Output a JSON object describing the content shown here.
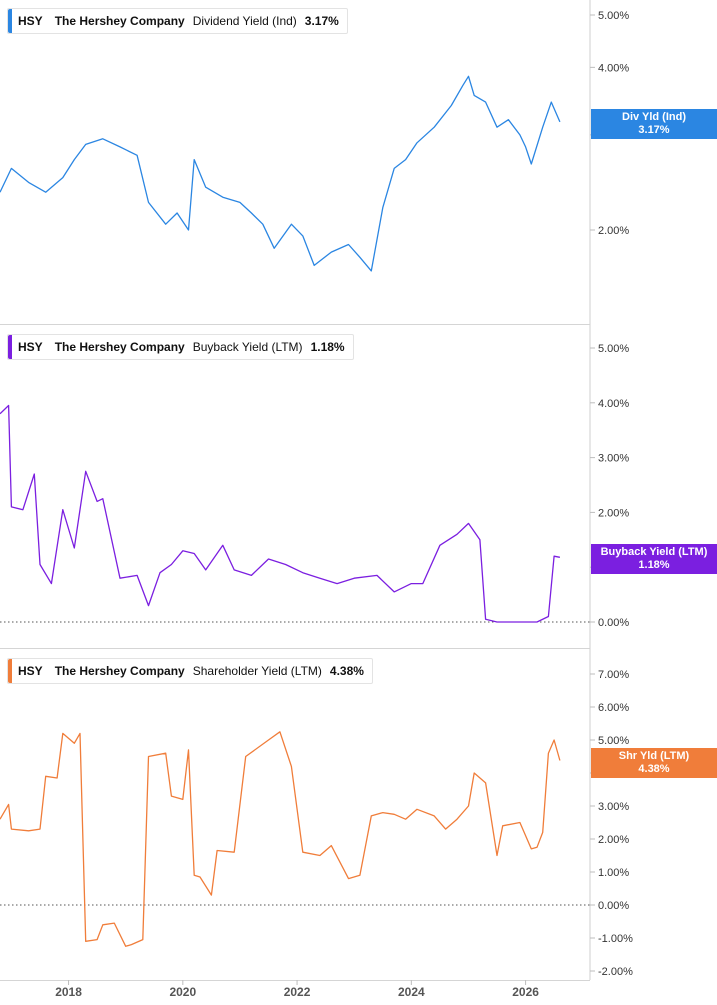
{
  "x_axis": {
    "tick_labels": [
      "2018",
      "2020",
      "2022",
      "2024",
      "2026"
    ],
    "tick_years": [
      2018,
      2020,
      2022,
      2024,
      2026
    ]
  },
  "chart_data": [
    {
      "type": "line",
      "ticker": "HSY",
      "company": "The Hershey Company",
      "metric": "Dividend Yield (Ind)",
      "current_value": "3.17%",
      "badge": {
        "line1": "Div Yld (Ind)",
        "line2": "3.17%"
      },
      "color": "#2b86e2",
      "scale": "log",
      "ylim": [
        1.6,
        5.5
      ],
      "y_ticks": [
        2,
        3,
        4,
        5
      ],
      "y_tick_labels": [
        "2.00%",
        "3.00%",
        "4.00%",
        "5.00%"
      ],
      "series": [
        {
          "x": [
            2016.8,
            2017.0,
            2017.3,
            2017.6,
            2017.9,
            2018.1,
            2018.3,
            2018.6,
            2018.9,
            2019.2,
            2019.4,
            2019.7,
            2019.9,
            2020.1,
            2020.2,
            2020.4,
            2020.7,
            2021.0,
            2021.2,
            2021.4,
            2021.6,
            2021.9,
            2022.1,
            2022.3,
            2022.6,
            2022.9,
            2023.1,
            2023.3,
            2023.5,
            2023.7,
            2023.9,
            2024.1,
            2024.4,
            2024.7,
            2024.9,
            2025.0,
            2025.1,
            2025.3,
            2025.5,
            2025.7,
            2025.9,
            2026.0,
            2026.1,
            2026.3,
            2026.45,
            2026.6
          ],
          "values": [
            2.35,
            2.6,
            2.45,
            2.35,
            2.5,
            2.7,
            2.88,
            2.95,
            2.85,
            2.75,
            2.25,
            2.05,
            2.15,
            2.0,
            2.7,
            2.4,
            2.3,
            2.25,
            2.15,
            2.05,
            1.85,
            2.05,
            1.95,
            1.72,
            1.82,
            1.88,
            1.78,
            1.68,
            2.2,
            2.6,
            2.7,
            2.9,
            3.1,
            3.4,
            3.7,
            3.85,
            3.55,
            3.45,
            3.1,
            3.2,
            3.0,
            2.85,
            2.65,
            3.1,
            3.45,
            3.17
          ]
        }
      ]
    },
    {
      "type": "line",
      "ticker": "HSY",
      "company": "The Hershey Company",
      "metric": "Buyback Yield (LTM)",
      "current_value": "1.18%",
      "badge": {
        "line1": "Buyback Yield (LTM)",
        "line2": "1.18%"
      },
      "color": "#7b1fe0",
      "scale": "linear",
      "ylim": [
        -0.5,
        5.3
      ],
      "y_ticks": [
        0,
        1,
        2,
        3,
        4,
        5
      ],
      "y_tick_labels": [
        "0.00%",
        "1.00%",
        "2.00%",
        "3.00%",
        "4.00%",
        "5.00%"
      ],
      "series": [
        {
          "x": [
            2016.8,
            2016.95,
            2017.0,
            2017.2,
            2017.4,
            2017.5,
            2017.7,
            2017.9,
            2018.1,
            2018.3,
            2018.5,
            2018.6,
            2018.9,
            2019.2,
            2019.4,
            2019.6,
            2019.8,
            2020.0,
            2020.2,
            2020.4,
            2020.7,
            2020.9,
            2021.2,
            2021.5,
            2021.8,
            2022.1,
            2022.4,
            2022.7,
            2023.0,
            2023.4,
            2023.7,
            2024.0,
            2024.2,
            2024.5,
            2024.8,
            2025.0,
            2025.2,
            2025.3,
            2025.5,
            2025.9,
            2026.2,
            2026.4,
            2026.5,
            2026.6
          ],
          "values": [
            3.8,
            3.95,
            2.1,
            2.05,
            2.7,
            1.05,
            0.7,
            2.05,
            1.35,
            2.75,
            2.2,
            2.25,
            0.8,
            0.85,
            0.3,
            0.9,
            1.05,
            1.3,
            1.25,
            0.95,
            1.4,
            0.95,
            0.85,
            1.15,
            1.05,
            0.9,
            0.8,
            0.7,
            0.8,
            0.85,
            0.55,
            0.7,
            0.7,
            1.4,
            1.6,
            1.8,
            1.5,
            0.05,
            0.0,
            0.0,
            0.0,
            0.1,
            1.2,
            1.18
          ]
        }
      ]
    },
    {
      "type": "line",
      "ticker": "HSY",
      "company": "The Hershey Company",
      "metric": "Shareholder Yield (LTM)",
      "current_value": "4.38%",
      "badge": {
        "line1": "Shr Yld (LTM)",
        "line2": "4.38%"
      },
      "color": "#f07d3a",
      "scale": "linear",
      "ylim": [
        -2.0,
        7.5
      ],
      "y_ticks": [
        -2,
        -1,
        0,
        1,
        2,
        3,
        4,
        5,
        6,
        7
      ],
      "y_tick_labels": [
        "-2.00%",
        "-1.00%",
        "0.00%",
        "1.00%",
        "2.00%",
        "3.00%",
        "4.00%",
        "5.00%",
        "6.00%",
        "7.00%"
      ],
      "series": [
        {
          "x": [
            2016.8,
            2016.95,
            2017.0,
            2017.3,
            2017.5,
            2017.6,
            2017.8,
            2017.9,
            2018.1,
            2018.2,
            2018.3,
            2018.5,
            2018.6,
            2018.8,
            2019.0,
            2019.1,
            2019.3,
            2019.4,
            2019.7,
            2019.8,
            2020.0,
            2020.1,
            2020.2,
            2020.3,
            2020.5,
            2020.6,
            2020.9,
            2021.1,
            2021.5,
            2021.7,
            2021.9,
            2022.1,
            2022.4,
            2022.6,
            2022.9,
            2023.1,
            2023.3,
            2023.5,
            2023.7,
            2023.9,
            2024.1,
            2024.4,
            2024.6,
            2024.8,
            2025.0,
            2025.1,
            2025.3,
            2025.5,
            2025.6,
            2025.9,
            2026.1,
            2026.2,
            2026.3,
            2026.4,
            2026.5,
            2026.6
          ],
          "values": [
            2.6,
            3.05,
            2.3,
            2.25,
            2.3,
            3.9,
            3.85,
            5.2,
            4.9,
            5.2,
            -1.1,
            -1.05,
            -0.6,
            -0.55,
            -1.25,
            -1.2,
            -1.05,
            4.5,
            4.6,
            3.3,
            3.2,
            4.7,
            0.9,
            0.85,
            0.3,
            1.65,
            1.6,
            4.5,
            5.0,
            5.25,
            4.2,
            1.6,
            1.5,
            1.8,
            0.8,
            0.9,
            2.7,
            2.8,
            2.75,
            2.6,
            2.9,
            2.7,
            2.3,
            2.6,
            3.0,
            4.0,
            3.7,
            1.5,
            2.4,
            2.5,
            1.7,
            1.75,
            2.2,
            4.6,
            5.0,
            4.38
          ]
        }
      ]
    }
  ]
}
